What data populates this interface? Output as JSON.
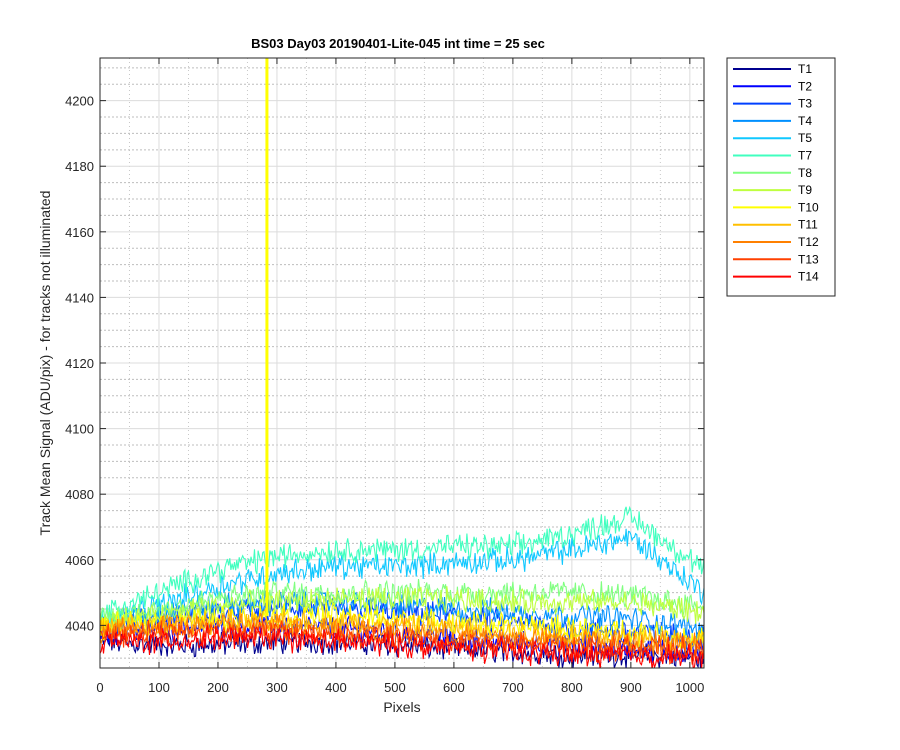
{
  "chart_data": {
    "type": "line",
    "title": "BS03 Day03 20190401-Lite-045 int time = 25 sec",
    "xlabel": "Pixels",
    "ylabel": "Track Mean Signal (ADU/pix) - for tracks not illuminated",
    "xlim": [
      0,
      1024
    ],
    "ylim": [
      4027,
      4213
    ],
    "xticks": [
      0,
      100,
      200,
      300,
      400,
      500,
      600,
      700,
      800,
      900,
      1000
    ],
    "yticks": [
      4040,
      4060,
      4080,
      4100,
      4120,
      4140,
      4160,
      4180,
      4200
    ],
    "grid": "major and minor (dotted)",
    "legend_position": "outside-right-top",
    "spike": {
      "series": "T10",
      "x": 283,
      "y_top": 4213
    },
    "series": [
      {
        "name": "T1",
        "color": "#00008f",
        "x": [
          0,
          100,
          200,
          300,
          400,
          500,
          600,
          700,
          800,
          900,
          1024
        ],
        "values": [
          4035,
          4034,
          4034,
          4035,
          4035,
          4034,
          4033,
          4032,
          4031,
          4031,
          4030
        ]
      },
      {
        "name": "T2",
        "color": "#0000ff",
        "x": [
          0,
          100,
          200,
          300,
          400,
          500,
          600,
          700,
          800,
          900,
          1024
        ],
        "values": [
          4038,
          4039,
          4040,
          4040,
          4039,
          4038,
          4036,
          4035,
          4034,
          4033,
          4032
        ]
      },
      {
        "name": "T3",
        "color": "#0040ff",
        "x": [
          0,
          100,
          200,
          300,
          400,
          500,
          600,
          700,
          800,
          900,
          1024
        ],
        "values": [
          4040,
          4042,
          4044,
          4045,
          4045,
          4044,
          4043,
          4041,
          4039,
          4038,
          4036
        ]
      },
      {
        "name": "T4",
        "color": "#0090ff",
        "x": [
          0,
          100,
          200,
          300,
          400,
          500,
          600,
          700,
          800,
          900,
          1024
        ],
        "values": [
          4041,
          4044,
          4046,
          4047,
          4047,
          4046,
          4045,
          4044,
          4043,
          4042,
          4039
        ]
      },
      {
        "name": "T5",
        "color": "#10c8ff",
        "x": [
          0,
          100,
          200,
          300,
          400,
          500,
          600,
          700,
          800,
          900,
          1024
        ],
        "values": [
          4040,
          4046,
          4052,
          4056,
          4058,
          4058,
          4059,
          4060,
          4063,
          4067,
          4050
        ]
      },
      {
        "name": "T7",
        "color": "#40ffbf",
        "x": [
          0,
          100,
          200,
          300,
          400,
          500,
          600,
          700,
          800,
          900,
          1024
        ],
        "values": [
          4043,
          4050,
          4057,
          4061,
          4063,
          4063,
          4064,
          4064,
          4068,
          4073,
          4057
        ]
      },
      {
        "name": "T8",
        "color": "#80ff80",
        "x": [
          0,
          100,
          200,
          300,
          400,
          500,
          600,
          700,
          800,
          900,
          1024
        ],
        "values": [
          4042,
          4045,
          4048,
          4050,
          4050,
          4050,
          4050,
          4050,
          4050,
          4049,
          4046
        ]
      },
      {
        "name": "T9",
        "color": "#bfff40",
        "x": [
          0,
          100,
          200,
          300,
          400,
          500,
          600,
          700,
          800,
          900,
          1024
        ],
        "values": [
          4041,
          4043,
          4046,
          4047,
          4048,
          4048,
          4048,
          4047,
          4047,
          4047,
          4044
        ]
      },
      {
        "name": "T10",
        "color": "#ffff00",
        "x": [
          0,
          100,
          200,
          300,
          400,
          500,
          600,
          700,
          800,
          900,
          1024
        ],
        "values": [
          4039,
          4041,
          4042,
          4043,
          4043,
          4042,
          4041,
          4040,
          4039,
          4038,
          4036
        ]
      },
      {
        "name": "T11",
        "color": "#ffbf00",
        "x": [
          0,
          100,
          200,
          300,
          400,
          500,
          600,
          700,
          800,
          900,
          1024
        ],
        "values": [
          4039,
          4040,
          4041,
          4041,
          4041,
          4040,
          4039,
          4038,
          4037,
          4036,
          4035
        ]
      },
      {
        "name": "T12",
        "color": "#ff8000",
        "x": [
          0,
          100,
          200,
          300,
          400,
          500,
          600,
          700,
          800,
          900,
          1024
        ],
        "values": [
          4038,
          4039,
          4040,
          4040,
          4039,
          4038,
          4037,
          4036,
          4035,
          4035,
          4034
        ]
      },
      {
        "name": "T13",
        "color": "#ff4000",
        "x": [
          0,
          100,
          200,
          300,
          400,
          500,
          600,
          700,
          800,
          900,
          1024
        ],
        "values": [
          4037,
          4038,
          4038,
          4038,
          4037,
          4036,
          4035,
          4034,
          4033,
          4033,
          4032
        ]
      },
      {
        "name": "T14",
        "color": "#ff0000",
        "x": [
          0,
          100,
          200,
          300,
          400,
          500,
          600,
          700,
          800,
          900,
          1024
        ],
        "values": [
          4035,
          4035,
          4036,
          4036,
          4035,
          4034,
          4033,
          4032,
          4031,
          4031,
          4030
        ]
      }
    ]
  }
}
